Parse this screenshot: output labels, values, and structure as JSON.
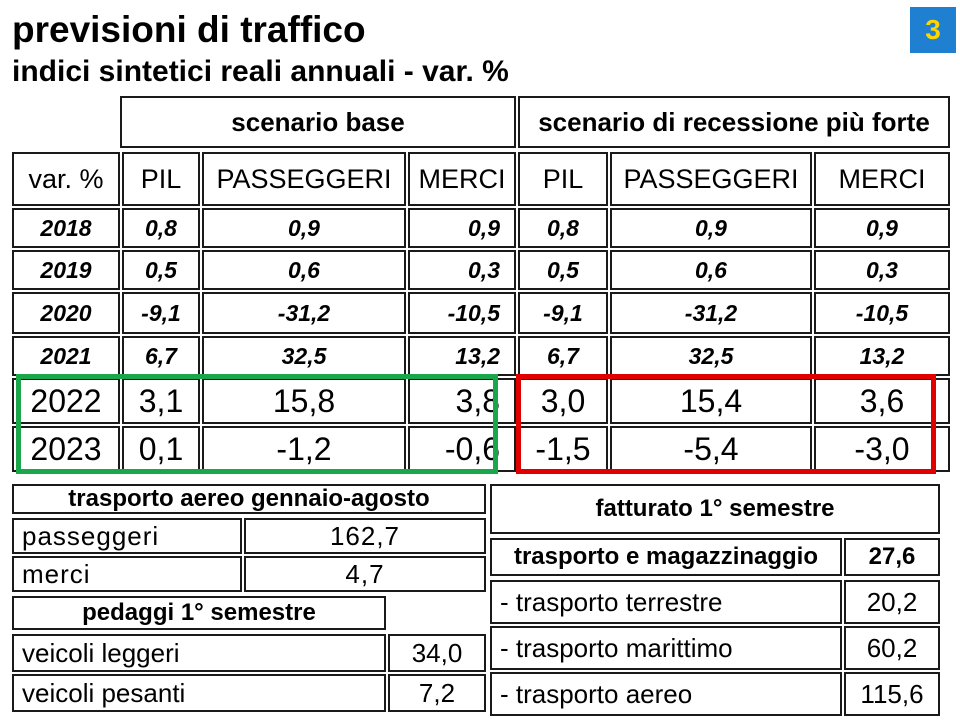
{
  "header": {
    "title": "previsioni di traffico",
    "subtitle": "indici sintetici reali annuali - var. %",
    "slide_number": "3"
  },
  "forecast_table": {
    "scenario_base": "scenario base",
    "scenario_recessione": "scenario di recessione più forte",
    "columns": {
      "label": "var. %",
      "pil": "PIL",
      "passeggeri": "PASSEGGERI",
      "merci": "MERCI",
      "pil2": "PIL",
      "passeggeri2": "PASSEGGERI",
      "merci2": "MERCI"
    },
    "rows": [
      {
        "year": "2018",
        "base_pil": "0,8",
        "base_pass": "0,9",
        "base_merci": "0,9",
        "rec_pil": "0,8",
        "rec_pass": "0,9",
        "rec_merci": "0,9"
      },
      {
        "year": "2019",
        "base_pil": "0,5",
        "base_pass": "0,6",
        "base_merci": "0,3",
        "rec_pil": "0,5",
        "rec_pass": "0,6",
        "rec_merci": "0,3"
      },
      {
        "year": "2020",
        "base_pil": "-9,1",
        "base_pass": "-31,2",
        "base_merci": "-10,5",
        "rec_pil": "-9,1",
        "rec_pass": "-31,2",
        "rec_merci": "-10,5"
      },
      {
        "year": "2021",
        "base_pil": "6,7",
        "base_pass": "32,5",
        "base_merci": "13,2",
        "rec_pil": "6,7",
        "rec_pass": "32,5",
        "rec_merci": "13,2"
      },
      {
        "year": "2022",
        "base_pil": "3,1",
        "base_pass": "15,8",
        "base_merci": "3,8",
        "rec_pil": "3,0",
        "rec_pass": "15,4",
        "rec_merci": "3,6"
      },
      {
        "year": "2023",
        "base_pil": "0,1",
        "base_pass": "-1,2",
        "base_merci": "-0,6",
        "rec_pil": "-1,5",
        "rec_pass": "-5,4",
        "rec_merci": "-3,0"
      }
    ]
  },
  "air_transport": {
    "title": "trasporto aereo gennaio-agosto",
    "rows": [
      {
        "label": "passeggeri",
        "value": "162,7"
      },
      {
        "label": "merci",
        "value": "4,7"
      }
    ]
  },
  "tolls": {
    "title": "pedaggi 1° semestre",
    "rows": [
      {
        "label": "veicoli leggeri",
        "value": "34,0"
      },
      {
        "label": "veicoli pesanti",
        "value": "7,2"
      }
    ]
  },
  "revenue": {
    "title": "fatturato 1° semestre",
    "total_label": "trasporto e magazzinaggio",
    "total_value": "27,6",
    "rows": [
      {
        "label": "- trasporto terrestre",
        "value": "20,2"
      },
      {
        "label": "- trasporto marittimo",
        "value": "60,2"
      },
      {
        "label": "- trasporto aereo",
        "value": "115,6"
      }
    ]
  },
  "colors": {
    "badge_bg": "#1f7fd0",
    "badge_text": "#ffd400",
    "highlight_base": "#1aa64b",
    "highlight_recession": "#e00000"
  }
}
